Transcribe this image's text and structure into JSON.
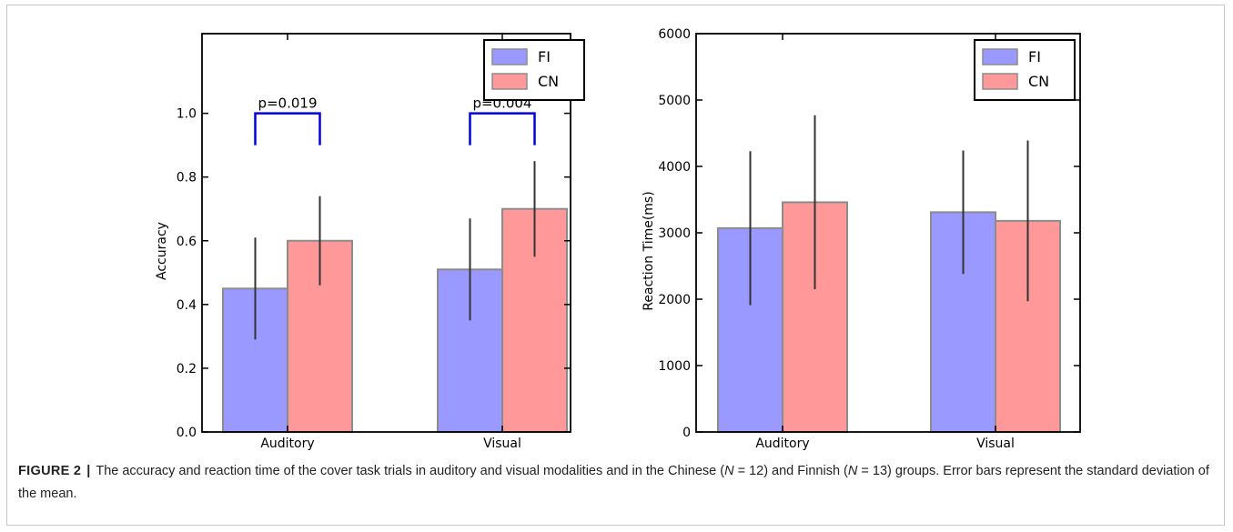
{
  "figure": {
    "caption_label": "FIGURE 2",
    "caption_separator": "|",
    "caption_segments": [
      {
        "text": "The accuracy and reaction time of the cover task trials in auditory and visual modalities and in the Chinese (",
        "italic": false
      },
      {
        "text": "N",
        "italic": true
      },
      {
        "text": " = 12) and Finnish (",
        "italic": false
      },
      {
        "text": "N",
        "italic": true
      },
      {
        "text": " = 13) groups. Error bars represent the standard deviation of the mean.",
        "italic": false
      }
    ]
  },
  "colors": {
    "FI": "#9999ff",
    "CN": "#ff9999",
    "bar_edge": "#8c8c8c",
    "error_bar": "#333333",
    "significance": "#0000dd"
  },
  "chart_data": [
    {
      "type": "bar",
      "ylabel": "Accuracy",
      "xlabel": "",
      "title": "",
      "categories": [
        "Auditory",
        "Visual"
      ],
      "ylim": [
        0,
        1.25
      ],
      "yticks": [
        0.0,
        0.2,
        0.4,
        0.6,
        0.8,
        1.0
      ],
      "ytick_labels": [
        "0.0",
        "0.2",
        "0.4",
        "0.6",
        "0.8",
        "1.0"
      ],
      "legend_position": "top-right",
      "series": [
        {
          "name": "FI",
          "values": [
            0.45,
            0.51
          ],
          "errors": [
            0.16,
            0.16
          ]
        },
        {
          "name": "CN",
          "values": [
            0.6,
            0.7
          ],
          "errors": [
            0.14,
            0.15
          ]
        }
      ],
      "annotations": [
        {
          "category": 0,
          "text": "p=0.019",
          "y_bottom": 0.9,
          "y_top": 1.0
        },
        {
          "category": 1,
          "text": "p=0.004",
          "y_bottom": 0.9,
          "y_top": 1.0
        }
      ]
    },
    {
      "type": "bar",
      "ylabel": "Reaction Time(ms)",
      "xlabel": "",
      "title": "",
      "categories": [
        "Auditory",
        "Visual"
      ],
      "ylim": [
        0,
        6000
      ],
      "yticks": [
        0,
        1000,
        2000,
        3000,
        4000,
        5000,
        6000
      ],
      "ytick_labels": [
        "0",
        "1000",
        "2000",
        "3000",
        "4000",
        "5000",
        "6000"
      ],
      "legend_position": "top-right",
      "series": [
        {
          "name": "FI",
          "values": [
            3070,
            3310
          ],
          "errors": [
            1160,
            930
          ]
        },
        {
          "name": "CN",
          "values": [
            3460,
            3180
          ],
          "errors": [
            1310,
            1210
          ]
        }
      ],
      "annotations": []
    }
  ]
}
